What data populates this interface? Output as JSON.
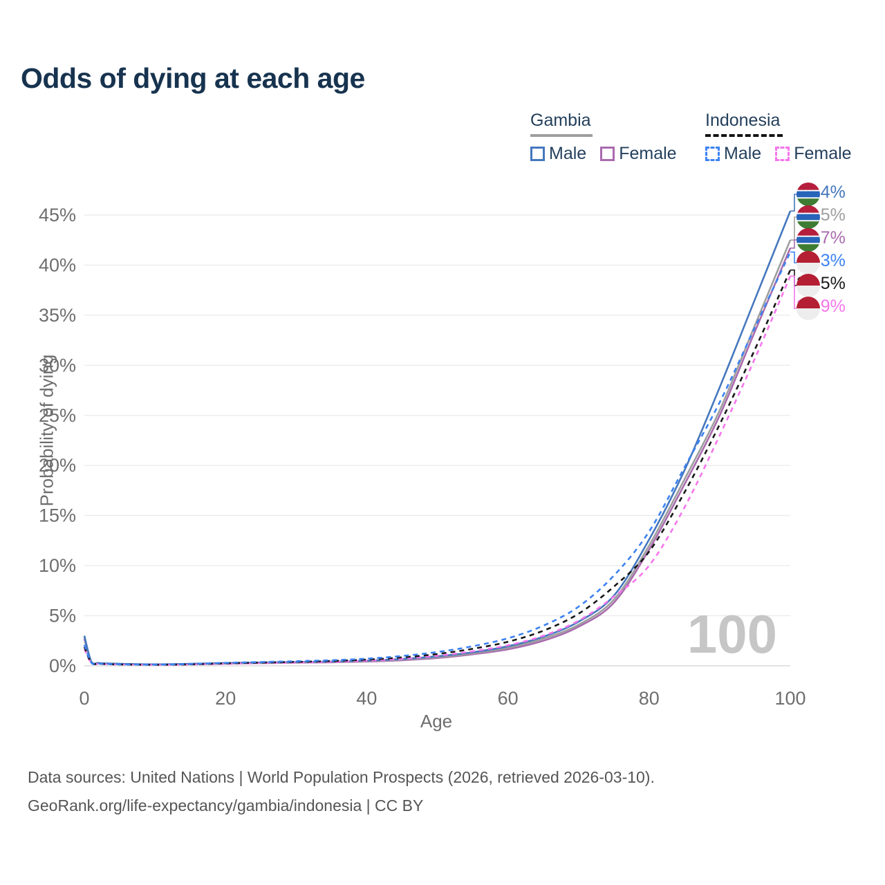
{
  "title": "Odds of dying at each age",
  "watermark": "100",
  "legend": {
    "groups": [
      {
        "name": "Gambia",
        "line_style": "solid",
        "underline_color": "#9E9E9E",
        "items": [
          {
            "label": "Male",
            "color": "#4577BD",
            "dashed": false
          },
          {
            "label": "Female",
            "color": "#A96BAE",
            "dashed": false
          }
        ]
      },
      {
        "name": "Indonesia",
        "line_style": "dashed",
        "underline_color": "#141414",
        "items": [
          {
            "label": "Male",
            "color": "#3C82F2",
            "dashed": true
          },
          {
            "label": "Female",
            "color": "#F475EC",
            "dashed": true
          }
        ]
      }
    ]
  },
  "axes": {
    "y_title": "Probability of dying",
    "x_title": "Age",
    "y_ticks": [
      "0%",
      "5%",
      "10%",
      "15%",
      "20%",
      "25%",
      "30%",
      "35%",
      "40%",
      "45%"
    ],
    "y_tick_values": [
      0,
      5,
      10,
      15,
      20,
      25,
      30,
      35,
      40,
      45
    ],
    "x_tick_values": [
      0,
      20,
      40,
      60,
      80,
      100
    ]
  },
  "chart_data": {
    "type": "line",
    "title": "Odds of dying at each age",
    "xlabel": "Age",
    "ylabel": "Probability of dying",
    "xlim": [
      0,
      100
    ],
    "ylim_percent": [
      0,
      47
    ],
    "grid": "horizontal",
    "hover_age": 100,
    "ages": [
      0,
      1,
      2,
      3,
      5,
      10,
      15,
      20,
      25,
      30,
      35,
      40,
      45,
      50,
      55,
      60,
      65,
      70,
      75,
      80,
      85,
      90,
      95,
      100
    ],
    "series": [
      {
        "name": "Gambia Male",
        "country": "Gambia",
        "sex": "Male",
        "style": "solid",
        "color": "#4577BD",
        "flag": "gambia",
        "end_label": "45.4%",
        "values_percent": [
          3.0,
          0.4,
          0.28,
          0.24,
          0.2,
          0.15,
          0.2,
          0.28,
          0.33,
          0.38,
          0.43,
          0.52,
          0.68,
          0.95,
          1.35,
          1.95,
          2.9,
          4.4,
          7.0,
          12.6,
          19.5,
          27.8,
          36.6,
          45.4
        ]
      },
      {
        "name": "Gambia Both sexes",
        "country": "Gambia",
        "sex": "Both",
        "style": "solid",
        "color": "#9E9E9E",
        "flag": "gambia",
        "end_label": "42.5%",
        "values_percent": [
          2.85,
          0.38,
          0.27,
          0.23,
          0.19,
          0.14,
          0.18,
          0.25,
          0.3,
          0.34,
          0.39,
          0.47,
          0.62,
          0.86,
          1.25,
          1.8,
          2.7,
          4.1,
          6.6,
          12.0,
          18.6,
          25.5,
          34.0,
          42.5
        ]
      },
      {
        "name": "Gambia Female",
        "country": "Gambia",
        "sex": "Female",
        "style": "solid",
        "color": "#A96BAE",
        "flag": "gambia",
        "end_label": "41.7%",
        "values_percent": [
          2.7,
          0.36,
          0.26,
          0.22,
          0.18,
          0.13,
          0.16,
          0.22,
          0.27,
          0.31,
          0.35,
          0.43,
          0.56,
          0.78,
          1.15,
          1.65,
          2.5,
          3.9,
          6.3,
          11.6,
          18.1,
          25.0,
          33.4,
          41.7
        ]
      },
      {
        "name": "Indonesia Male",
        "country": "Indonesia",
        "sex": "Male",
        "style": "dashed",
        "color": "#3C82F2",
        "flag": "indonesia",
        "end_label": "41.3%",
        "values_percent": [
          2.1,
          0.3,
          0.22,
          0.19,
          0.15,
          0.12,
          0.18,
          0.3,
          0.38,
          0.46,
          0.56,
          0.72,
          0.98,
          1.38,
          1.95,
          2.75,
          4.0,
          5.9,
          9.0,
          13.4,
          19.8,
          26.3,
          33.8,
          41.3
        ]
      },
      {
        "name": "Indonesia Both sexes",
        "country": "Indonesia",
        "sex": "Both",
        "style": "dashed",
        "color": "#181818",
        "flag": "indonesia",
        "end_label": "39.5%",
        "values_percent": [
          1.9,
          0.28,
          0.21,
          0.18,
          0.14,
          0.11,
          0.15,
          0.25,
          0.32,
          0.39,
          0.48,
          0.62,
          0.84,
          1.18,
          1.7,
          2.4,
          3.5,
          5.2,
          7.9,
          11.4,
          17.3,
          24.1,
          31.6,
          39.5
        ]
      },
      {
        "name": "Indonesia Female",
        "country": "Indonesia",
        "sex": "Female",
        "style": "dashed",
        "color": "#F475EC",
        "flag": "indonesia",
        "end_label": "38.9%",
        "values_percent": [
          1.7,
          0.26,
          0.19,
          0.16,
          0.13,
          0.1,
          0.13,
          0.2,
          0.26,
          0.32,
          0.4,
          0.52,
          0.7,
          1.0,
          1.45,
          2.05,
          3.0,
          4.5,
          6.9,
          10.0,
          15.8,
          23.0,
          30.7,
          38.9
        ]
      }
    ]
  },
  "flag_colors": {
    "gambia": {
      "red": "#B51E3C",
      "white": "#FFFFFF",
      "blue": "#2764BA",
      "green": "#3E7C33"
    },
    "indonesia": {
      "red": "#B51F33",
      "white": "#EDEDED"
    }
  },
  "footer": {
    "line1": "Data sources: United Nations | World Population Prospects (2026, retrieved 2026-03-10).",
    "line2": "GeoRank.org/life-expectancy/gambia/indonesia | CC BY"
  }
}
